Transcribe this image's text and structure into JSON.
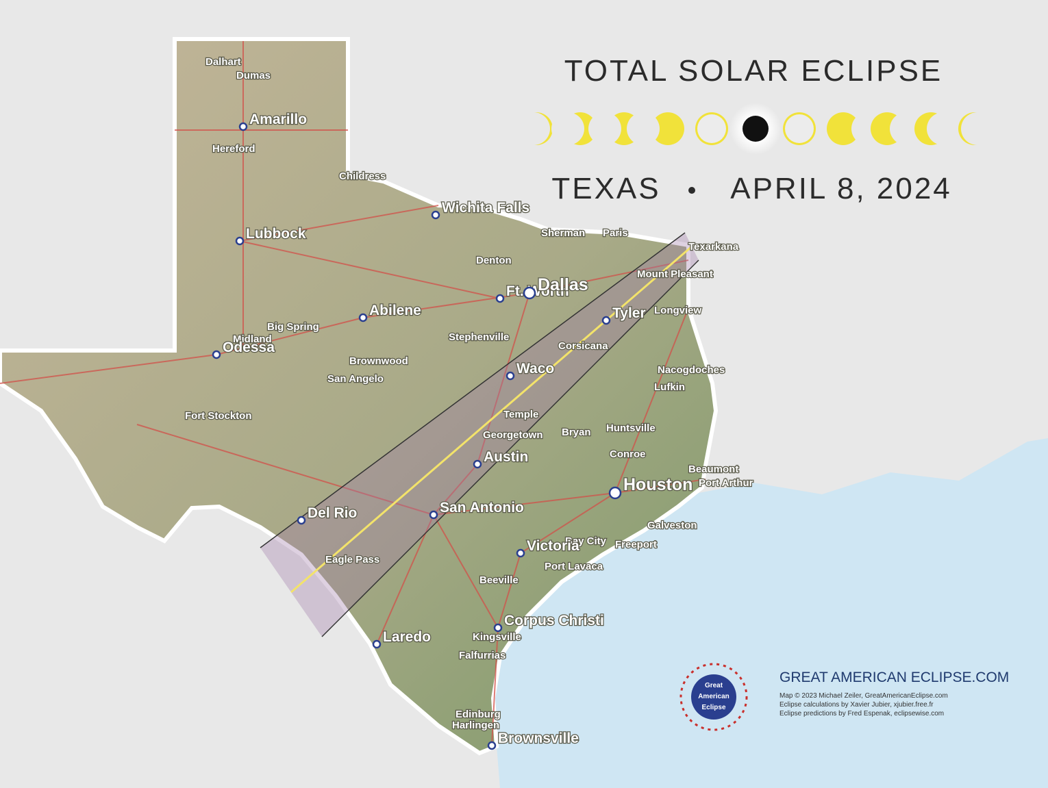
{
  "header": {
    "title": "TOTAL SOLAR ECLIPSE",
    "state": "TEXAS",
    "date": "APRIL 8, 2024"
  },
  "cities": [
    {
      "label": "Dalhart"
    },
    {
      "label": "Dumas"
    },
    {
      "label": "Amarillo"
    },
    {
      "label": "Hereford"
    },
    {
      "label": "Childress"
    },
    {
      "label": "Lubbock"
    },
    {
      "label": "Wichita Falls"
    },
    {
      "label": "Sherman"
    },
    {
      "label": "Paris"
    },
    {
      "label": "Texarkana"
    },
    {
      "label": "Denton"
    },
    {
      "label": "Mount Pleasant"
    },
    {
      "label": "Ft. Worth"
    },
    {
      "label": "Dallas"
    },
    {
      "label": "Abilene"
    },
    {
      "label": "Tyler"
    },
    {
      "label": "Longview"
    },
    {
      "label": "Big Spring"
    },
    {
      "label": "Midland"
    },
    {
      "label": "Odessa"
    },
    {
      "label": "Stephenville"
    },
    {
      "label": "Corsicana"
    },
    {
      "label": "Brownwood"
    },
    {
      "label": "Waco"
    },
    {
      "label": "Nacogdoches"
    },
    {
      "label": "San Angelo"
    },
    {
      "label": "Lufkin"
    },
    {
      "label": "Temple"
    },
    {
      "label": "Fort Stockton"
    },
    {
      "label": "Bryan"
    },
    {
      "label": "Huntsville"
    },
    {
      "label": "Georgetown"
    },
    {
      "label": "Austin"
    },
    {
      "label": "Conroe"
    },
    {
      "label": "Houston"
    },
    {
      "label": "Beaumont"
    },
    {
      "label": "Port Arthur"
    },
    {
      "label": "Del Rio"
    },
    {
      "label": "San Antonio"
    },
    {
      "label": "Galveston"
    },
    {
      "label": "Bay City"
    },
    {
      "label": "Freeport"
    },
    {
      "label": "Eagle Pass"
    },
    {
      "label": "Victoria"
    },
    {
      "label": "Port Lavaca"
    },
    {
      "label": "Beeville"
    },
    {
      "label": "Corpus Christi"
    },
    {
      "label": "Kingsville"
    },
    {
      "label": "Laredo"
    },
    {
      "label": "Falfurrias"
    },
    {
      "label": "Edinburg"
    },
    {
      "label": "Harlingen"
    },
    {
      "label": "Brownsville"
    }
  ],
  "logo": {
    "lines": [
      "Great",
      "American",
      "Eclipse"
    ]
  },
  "credits": {
    "site": "GREAT AMERICAN ECLIPSE.COM",
    "lines": [
      "Map © 2023 Michael Zeiler, GreatAmericanEclipse.com",
      "Eclipse calculations by Xavier Jubier, xjubier.free.fr",
      "Eclipse predictions by Fred Espenak, eclipsewise.com"
    ]
  }
}
